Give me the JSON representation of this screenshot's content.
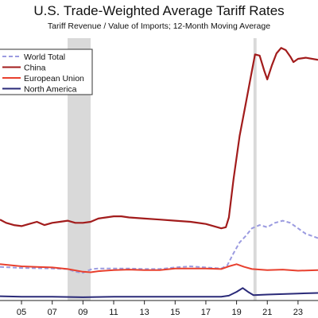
{
  "chart_data": {
    "type": "line",
    "title": "U.S. Trade-Weighted Average Tariff Rates",
    "subtitle": "Tariff Revenue / Value of Imports; 12-Month Moving Average",
    "xlabel": "",
    "ylabel": "",
    "xlim": [
      2003.6,
      2024.3
    ],
    "ylim": [
      0,
      24
    ],
    "x_tick_labels": [
      "05",
      "07",
      "09",
      "11",
      "13",
      "15",
      "17",
      "19",
      "21",
      "23"
    ],
    "x_tick_values": [
      2005,
      2007,
      2009,
      2011,
      2013,
      2015,
      2017,
      2019,
      2021,
      2023
    ],
    "shaded_periods": [
      [
        2008.0,
        2009.5
      ],
      [
        2020.1,
        2020.3
      ]
    ],
    "legend_position": "top-left",
    "grid": false,
    "series": [
      {
        "name": "World Total",
        "color": "#9b9be0",
        "style": "dashed",
        "points": [
          [
            2003.6,
            2.95
          ],
          [
            2005,
            2.85
          ],
          [
            2007,
            2.8
          ],
          [
            2008,
            2.75
          ],
          [
            2008.5,
            2.5
          ],
          [
            2009,
            2.4
          ],
          [
            2009.3,
            2.6
          ],
          [
            2009.6,
            2.75
          ],
          [
            2010,
            2.8
          ],
          [
            2011,
            2.8
          ],
          [
            2012,
            2.8
          ],
          [
            2013,
            2.75
          ],
          [
            2014,
            2.75
          ],
          [
            2015,
            2.9
          ],
          [
            2016,
            3.0
          ],
          [
            2017,
            2.9
          ],
          [
            2018,
            2.8
          ],
          [
            2018.4,
            3.1
          ],
          [
            2018.8,
            4.2
          ],
          [
            2019.2,
            5.2
          ],
          [
            2019.6,
            5.8
          ],
          [
            2020,
            6.5
          ],
          [
            2020.5,
            6.8
          ],
          [
            2021,
            6.6
          ],
          [
            2021.5,
            7.0
          ],
          [
            2022,
            7.2
          ],
          [
            2022.5,
            7.0
          ],
          [
            2023,
            6.5
          ],
          [
            2023.5,
            6.0
          ],
          [
            2024.3,
            5.6
          ]
        ]
      },
      {
        "name": "China",
        "color": "#a21c1c",
        "style": "solid",
        "points": [
          [
            2003.6,
            7.3
          ],
          [
            2004,
            7.0
          ],
          [
            2004.5,
            6.8
          ],
          [
            2005,
            6.7
          ],
          [
            2005.5,
            6.9
          ],
          [
            2006,
            7.1
          ],
          [
            2006.5,
            6.8
          ],
          [
            2007,
            7.0
          ],
          [
            2007.5,
            7.1
          ],
          [
            2008,
            7.2
          ],
          [
            2008.5,
            7.0
          ],
          [
            2009,
            7.0
          ],
          [
            2009.5,
            7.1
          ],
          [
            2010,
            7.4
          ],
          [
            2010.5,
            7.5
          ],
          [
            2011,
            7.6
          ],
          [
            2011.5,
            7.6
          ],
          [
            2012,
            7.5
          ],
          [
            2013,
            7.4
          ],
          [
            2014,
            7.3
          ],
          [
            2015,
            7.2
          ],
          [
            2016,
            7.1
          ],
          [
            2017,
            6.9
          ],
          [
            2017.5,
            6.7
          ],
          [
            2018,
            6.5
          ],
          [
            2018.3,
            6.6
          ],
          [
            2018.5,
            7.5
          ],
          [
            2018.8,
            11
          ],
          [
            2019.2,
            15
          ],
          [
            2019.6,
            18
          ],
          [
            2020,
            21
          ],
          [
            2020.2,
            22.5
          ],
          [
            2020.5,
            22.4
          ],
          [
            2020.8,
            21
          ],
          [
            2021,
            20.2
          ],
          [
            2021.3,
            21.5
          ],
          [
            2021.6,
            22.6
          ],
          [
            2021.9,
            23.1
          ],
          [
            2022.2,
            22.9
          ],
          [
            2022.5,
            22.3
          ],
          [
            2022.7,
            21.8
          ],
          [
            2023,
            22.1
          ],
          [
            2023.5,
            22.2
          ],
          [
            2024.3,
            22.0
          ]
        ]
      },
      {
        "name": "European Union",
        "color": "#e8402e",
        "style": "solid",
        "points": [
          [
            2003.6,
            3.2
          ],
          [
            2005,
            3.0
          ],
          [
            2006,
            2.95
          ],
          [
            2007,
            2.9
          ],
          [
            2008,
            2.75
          ],
          [
            2009,
            2.5
          ],
          [
            2009.5,
            2.45
          ],
          [
            2010,
            2.55
          ],
          [
            2011,
            2.65
          ],
          [
            2012,
            2.7
          ],
          [
            2013,
            2.65
          ],
          [
            2014,
            2.65
          ],
          [
            2015,
            2.8
          ],
          [
            2016,
            2.8
          ],
          [
            2017,
            2.8
          ],
          [
            2018,
            2.75
          ],
          [
            2018.5,
            3.0
          ],
          [
            2019,
            3.2
          ],
          [
            2019.5,
            2.95
          ],
          [
            2020,
            2.75
          ],
          [
            2021,
            2.65
          ],
          [
            2022,
            2.7
          ],
          [
            2023,
            2.6
          ],
          [
            2024.3,
            2.65
          ]
        ]
      },
      {
        "name": "North America",
        "color": "#2a2a78",
        "style": "solid",
        "points": [
          [
            2003.6,
            0.25
          ],
          [
            2005,
            0.2
          ],
          [
            2007,
            0.2
          ],
          [
            2009,
            0.15
          ],
          [
            2011,
            0.2
          ],
          [
            2013,
            0.2
          ],
          [
            2015,
            0.2
          ],
          [
            2017,
            0.2
          ],
          [
            2018,
            0.2
          ],
          [
            2018.5,
            0.3
          ],
          [
            2019,
            0.65
          ],
          [
            2019.4,
            1.0
          ],
          [
            2019.8,
            0.6
          ],
          [
            2020.1,
            0.35
          ],
          [
            2021,
            0.4
          ],
          [
            2022,
            0.45
          ],
          [
            2023,
            0.5
          ],
          [
            2024.3,
            0.55
          ]
        ]
      }
    ]
  }
}
